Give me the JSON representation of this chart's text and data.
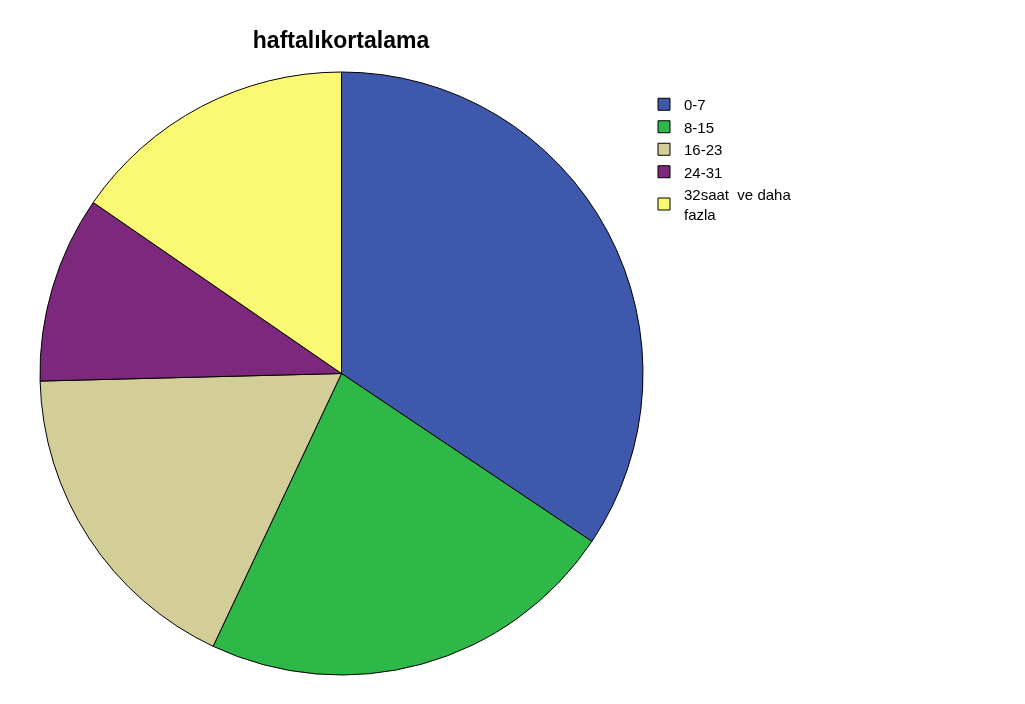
{
  "chart_data": {
    "type": "pie",
    "title": "haftalıkortalama",
    "categories": [
      "0-7",
      "8-15",
      "16-23",
      "24-31",
      "32saat  ve daha fazla"
    ],
    "values": [
      34.4,
      22.6,
      17.6,
      10.0,
      15.4
    ],
    "colors": [
      "#3e58ac",
      "#2eb848",
      "#d3ce97",
      "#7c287d",
      "#fbf873"
    ],
    "legend": "top right"
  }
}
